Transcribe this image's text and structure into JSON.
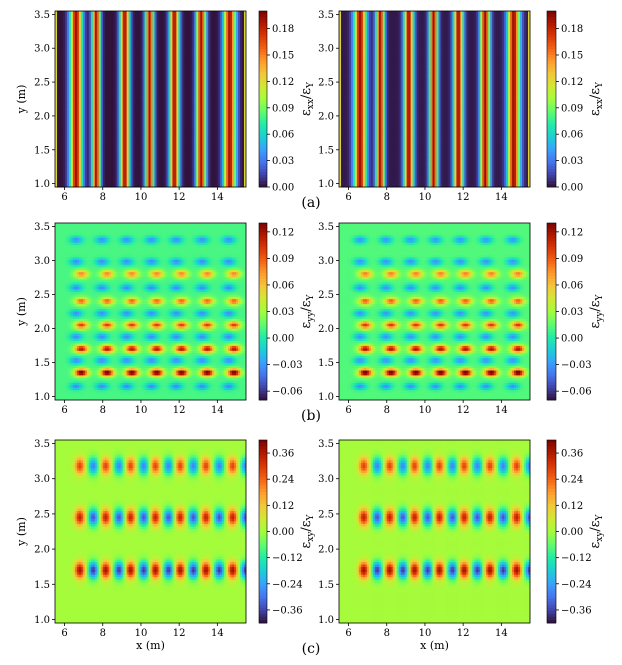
{
  "colormap": [
    "#30123b",
    "#4145ab",
    "#4675ed",
    "#39a2fc",
    "#1bcfd4",
    "#24eca6",
    "#61fc6c",
    "#a4fc3b",
    "#d1e834",
    "#f3c63a",
    "#fe9b2d",
    "#f36315",
    "#d93806",
    "#b11901",
    "#7a0402"
  ],
  "chart_data": [
    {
      "id": "a",
      "type": "heatmap",
      "panel_label": "(a)",
      "colorbar_label": "ε",
      "colorbar_sub": "xx",
      "colorbar_den": "ε",
      "colorbar_den_sub": "Y",
      "colorbar_ticks": [
        "0.00",
        "0.03",
        "0.06",
        "0.09",
        "0.12",
        "0.15",
        "0.18"
      ],
      "crange": [
        0,
        0.2
      ],
      "ylabel": "y (m)",
      "xlabel": "",
      "xlim": [
        5.5,
        15.5
      ],
      "ylim": [
        0.95,
        3.55
      ],
      "xticks": [
        "6",
        "8",
        "10",
        "12",
        "14"
      ],
      "yticks": [
        "1.0",
        "1.5",
        "2.0",
        "2.5",
        "3.0",
        "3.5"
      ],
      "pattern": "vertical_stripes"
    },
    {
      "id": "b",
      "type": "heatmap",
      "panel_label": "(b)",
      "colorbar_label": "ε",
      "colorbar_sub": "yy",
      "colorbar_den": "ε",
      "colorbar_den_sub": "Y",
      "colorbar_ticks": [
        "−0.06",
        "−0.03",
        "0.00",
        "0.03",
        "0.06",
        "0.09",
        "0.12"
      ],
      "crange": [
        -0.07,
        0.13
      ],
      "ylabel": "y (m)",
      "xlabel": "",
      "xlim": [
        5.5,
        15.5
      ],
      "ylim": [
        0.95,
        3.55
      ],
      "xticks": [
        "6",
        "8",
        "10",
        "12",
        "14"
      ],
      "yticks": [
        "1.0",
        "1.5",
        "2.0",
        "2.5",
        "3.0",
        "3.5"
      ],
      "pattern": "dot_lattice"
    },
    {
      "id": "c",
      "type": "heatmap",
      "panel_label": "(c)",
      "colorbar_label": "ε",
      "colorbar_sub": "xy",
      "colorbar_den": "ε",
      "colorbar_den_sub": "Y",
      "colorbar_ticks": [
        "−0.36",
        "−0.24",
        "−0.12",
        "0.00",
        "0.12",
        "0.24",
        "0.36"
      ],
      "crange": [
        -0.42,
        0.42
      ],
      "ylabel": "y (m)",
      "xlabel": "x (m)",
      "xlim": [
        5.5,
        15.5
      ],
      "ylim": [
        0.95,
        3.55
      ],
      "xticks": [
        "6",
        "8",
        "10",
        "12",
        "14"
      ],
      "yticks": [
        "1.0",
        "1.5",
        "2.0",
        "2.5",
        "3.0",
        "3.5"
      ],
      "pattern": "shear_pairs"
    }
  ]
}
